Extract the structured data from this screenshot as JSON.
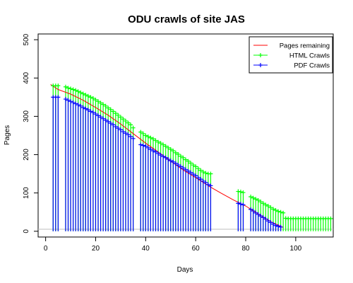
{
  "chart_data": {
    "type": "line",
    "title": "ODU crawls of site JAS",
    "xlabel": "Days",
    "ylabel": "Pages",
    "xlim": [
      -3,
      115
    ],
    "ylim": [
      -15,
      515
    ],
    "x_ticks": [
      0,
      20,
      40,
      60,
      80,
      100
    ],
    "y_ticks": [
      0,
      100,
      200,
      300,
      400,
      500
    ],
    "grid": false,
    "legend_position": "top-right",
    "colors": {
      "pages_remaining": "#ff0000",
      "html_crawls": "#00ff00",
      "pdf_crawls": "#0000ff",
      "zero_line": "#bebebe"
    },
    "series": [
      {
        "name": "Pages remaining",
        "x": [
          2,
          5,
          10,
          15,
          20,
          25,
          30,
          35,
          40,
          45,
          50,
          55,
          60,
          66,
          70,
          75,
          80,
          85,
          90,
          95
        ],
        "y": [
          383,
          370,
          358,
          342,
          323,
          303,
          280,
          255,
          230,
          207,
          183,
          160,
          140,
          115,
          100,
          82,
          66,
          45,
          25,
          10
        ]
      },
      {
        "name": "HTML Crawls",
        "x": [
          3,
          4,
          5,
          8,
          9,
          10,
          11,
          12,
          13,
          14,
          15,
          16,
          17,
          18,
          19,
          20,
          21,
          22,
          23,
          24,
          25,
          26,
          27,
          28,
          29,
          30,
          31,
          32,
          33,
          34,
          35,
          38,
          39,
          40,
          41,
          42,
          43,
          44,
          45,
          46,
          47,
          48,
          49,
          50,
          51,
          52,
          53,
          54,
          55,
          56,
          57,
          58,
          59,
          60,
          61,
          62,
          63,
          64,
          65,
          66,
          77,
          78,
          79,
          82,
          83,
          84,
          85,
          86,
          87,
          88,
          89,
          90,
          91,
          92,
          93,
          94,
          95,
          96,
          97,
          98,
          99,
          100,
          101,
          102,
          103,
          104,
          105,
          106,
          107,
          108,
          109,
          110,
          111,
          112,
          113,
          114
        ],
        "y": [
          380,
          380,
          380,
          377,
          374,
          372,
          370,
          368,
          365,
          362,
          359,
          356,
          353,
          350,
          347,
          343,
          339,
          335,
          331,
          327,
          322,
          318,
          313,
          308,
          303,
          298,
          293,
          288,
          283,
          278,
          270,
          259,
          255,
          250,
          247,
          244,
          241,
          237,
          233,
          230,
          226,
          222,
          218,
          214,
          210,
          205,
          201,
          196,
          192,
          187,
          183,
          178,
          173,
          169,
          164,
          159,
          155,
          152,
          150,
          150,
          104,
          103,
          101,
          90,
          87,
          84,
          81,
          77,
          73,
          69,
          66,
          62,
          58,
          55,
          52,
          50,
          48,
          34,
          33,
          33,
          33,
          33,
          33,
          33,
          33,
          33,
          33,
          33,
          33,
          33,
          33,
          33,
          33,
          33,
          33,
          33
        ]
      },
      {
        "name": "PDF Crawls",
        "x": [
          3,
          4,
          5,
          8,
          9,
          10,
          11,
          12,
          13,
          14,
          15,
          16,
          17,
          18,
          19,
          20,
          21,
          22,
          23,
          24,
          25,
          26,
          27,
          28,
          29,
          30,
          31,
          32,
          33,
          34,
          35,
          38,
          39,
          40,
          41,
          42,
          43,
          44,
          45,
          46,
          47,
          48,
          49,
          50,
          51,
          52,
          53,
          54,
          55,
          56,
          57,
          58,
          59,
          60,
          61,
          62,
          63,
          64,
          65,
          66,
          77,
          78,
          79,
          82,
          83,
          84,
          85,
          86,
          87,
          88,
          89,
          90,
          91,
          92,
          93,
          94
        ],
        "y": [
          350,
          350,
          350,
          345,
          342,
          339,
          336,
          333,
          330,
          327,
          323,
          320,
          317,
          313,
          310,
          306,
          302,
          298,
          294,
          290,
          286,
          282,
          278,
          273,
          269,
          265,
          260,
          256,
          252,
          247,
          242,
          226,
          224,
          222,
          218,
          214,
          210,
          207,
          203,
          199,
          195,
          192,
          188,
          184,
          181,
          177,
          173,
          169,
          165,
          161,
          157,
          153,
          149,
          145,
          140,
          136,
          131,
          127,
          122,
          119,
          73,
          71,
          69,
          57,
          53,
          48,
          44,
          40,
          36,
          32,
          27,
          23,
          19,
          15,
          13,
          11
        ]
      }
    ]
  }
}
